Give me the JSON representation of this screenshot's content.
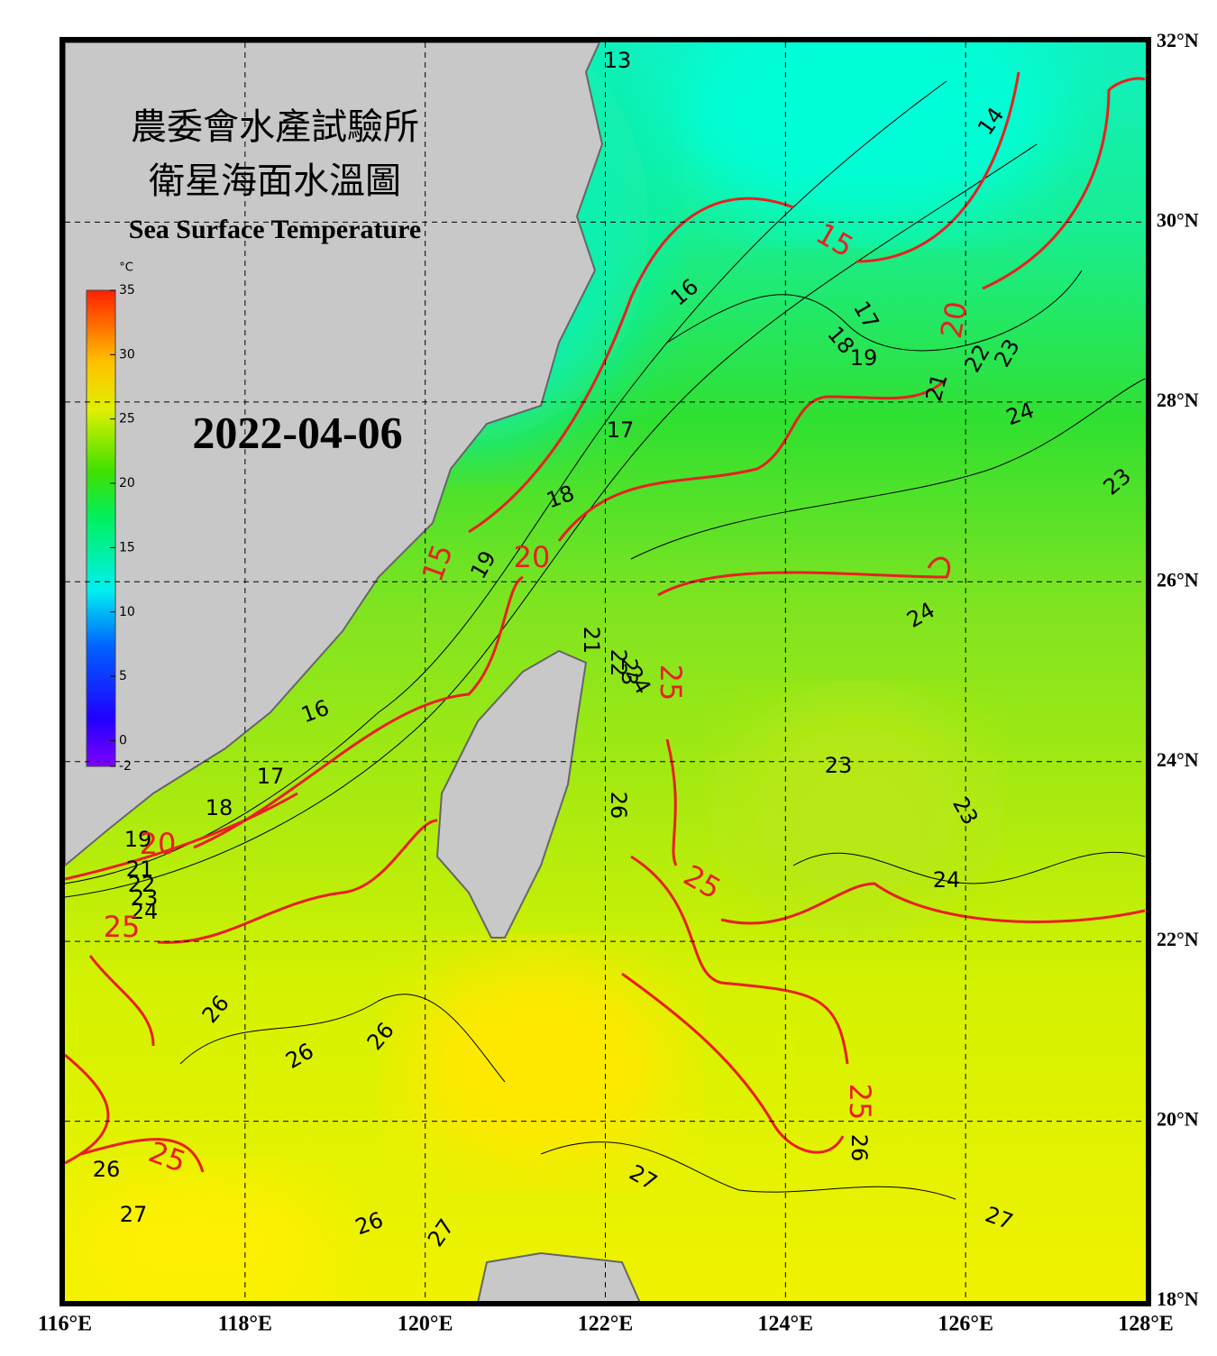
{
  "title_zh": [
    "農委會水產試驗所",
    "衛星海面水溫圖"
  ],
  "title_en": "Sea Surface Temperature",
  "date": "2022-04-06",
  "map": {
    "xlim": [
      116,
      128
    ],
    "ylim": [
      18,
      32
    ],
    "xticks": [
      {
        "value": 116,
        "label": "116°E"
      },
      {
        "value": 118,
        "label": "118°E"
      },
      {
        "value": 120,
        "label": "120°E"
      },
      {
        "value": 122,
        "label": "122°E"
      },
      {
        "value": 124,
        "label": "124°E"
      },
      {
        "value": 126,
        "label": "126°E"
      },
      {
        "value": 128,
        "label": "128°E"
      }
    ],
    "yticks": [
      {
        "value": 18,
        "label": "18°N"
      },
      {
        "value": 20,
        "label": "20°N"
      },
      {
        "value": 22,
        "label": "22°N"
      },
      {
        "value": 24,
        "label": "24°N"
      },
      {
        "value": 26,
        "label": "26°N"
      },
      {
        "value": 28,
        "label": "28°N"
      },
      {
        "value": 30,
        "label": "30°N"
      },
      {
        "value": 32,
        "label": "32°N"
      }
    ],
    "grid": true
  },
  "colorbar": {
    "unit": "°C",
    "lim": [
      -2,
      35
    ],
    "ticks": [
      -2,
      0,
      5,
      10,
      15,
      20,
      25,
      30,
      35
    ]
  },
  "contour_labels": [
    13,
    14,
    16,
    17,
    18,
    19,
    17,
    18,
    19,
    16,
    17,
    18,
    19,
    21,
    22,
    23,
    24,
    21,
    22,
    23,
    24,
    23,
    21,
    22,
    23,
    24,
    24,
    23,
    23,
    24,
    26,
    26,
    26,
    26,
    26,
    27,
    26,
    27,
    27,
    26,
    27
  ],
  "isotherm_labels": [
    15,
    20,
    15,
    20,
    25,
    25,
    25,
    20,
    25,
    25
  ]
}
